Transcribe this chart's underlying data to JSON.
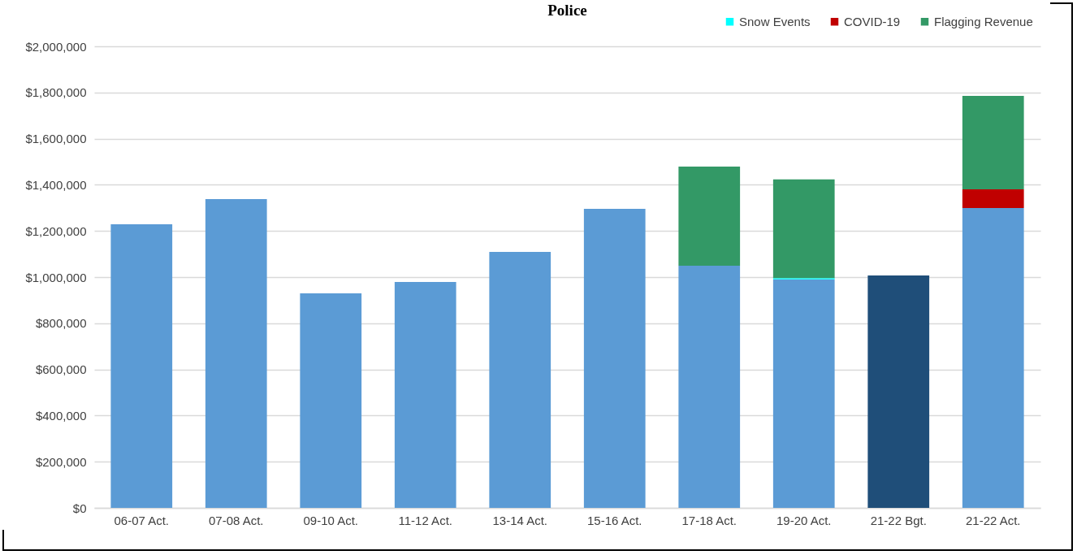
{
  "chart_data": {
    "type": "bar",
    "title": "Police",
    "stacked": true,
    "legend": "top right",
    "grid": "y",
    "categories": [
      "06-07 Act.",
      "07-08 Act.",
      "09-10 Act.",
      "11-12 Act.",
      "13-14 Act.",
      "15-16 Act.",
      "17-18 Act.",
      "19-20 Act.",
      "21-22 Bgt.",
      "21-22 Act."
    ],
    "series": [
      {
        "colors": [
          "#5b9bd5",
          "#5b9bd5",
          "#5b9bd5",
          "#5b9bd5",
          "#5b9bd5",
          "#5b9bd5",
          "#5b9bd5",
          "#5b9bd5",
          "#1f4e79",
          "#5b9bd5"
        ],
        "values": [
          1229000,
          1338000,
          930000,
          979000,
          1109000,
          1296000,
          1049000,
          990000,
          1007000,
          1299000
        ]
      },
      {
        "name": "Snow Events",
        "color": "#00ffff",
        "values": [
          null,
          null,
          null,
          null,
          null,
          null,
          null,
          6000,
          null,
          null
        ]
      },
      {
        "name": "COVID-19",
        "color": "#c00000",
        "values": [
          null,
          null,
          null,
          null,
          null,
          null,
          null,
          null,
          null,
          81000
        ]
      },
      {
        "name": "Flagging Revenue",
        "color": "#339966",
        "values": [
          null,
          null,
          null,
          null,
          null,
          null,
          430000,
          427000,
          null,
          405000
        ]
      }
    ],
    "ylim": [
      0,
      2000000
    ],
    "yticks": [
      {
        "value": 0,
        "label": "$0"
      },
      {
        "value": 200000,
        "label": "$200,000"
      },
      {
        "value": 400000,
        "label": "$400,000"
      },
      {
        "value": 600000,
        "label": "$600,000"
      },
      {
        "value": 800000,
        "label": "$800,000"
      },
      {
        "value": 1000000,
        "label": "$1,000,000"
      },
      {
        "value": 1200000,
        "label": "$1,200,000"
      },
      {
        "value": 1400000,
        "label": "$1,400,000"
      },
      {
        "value": 1600000,
        "label": "$1,600,000"
      },
      {
        "value": 1800000,
        "label": "$1,800,000"
      },
      {
        "value": 2000000,
        "label": "$2,000,000"
      }
    ]
  }
}
